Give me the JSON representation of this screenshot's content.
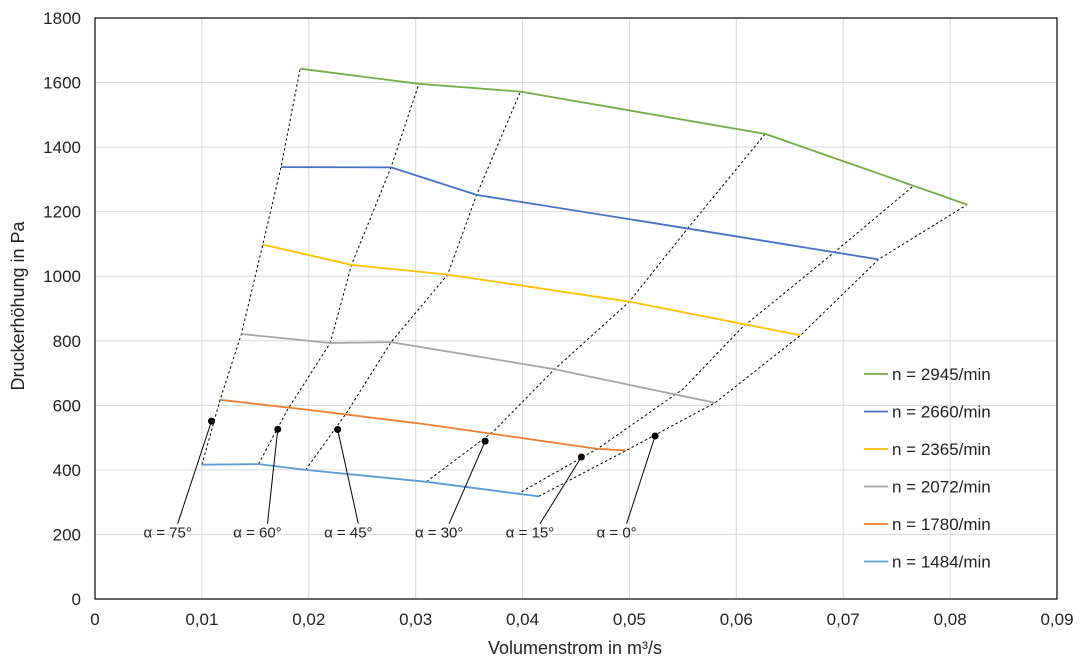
{
  "chart_data": {
    "type": "line",
    "xlabel": "Volumenstrom in m³/s",
    "ylabel": "Druckerhöhung in Pa",
    "xlim": [
      0,
      0.09
    ],
    "ylim": [
      0,
      1800
    ],
    "x_ticks": [
      0,
      0.01,
      0.02,
      0.03,
      0.04,
      0.05,
      0.06,
      0.07,
      0.08,
      0.09
    ],
    "x_tick_labels": [
      "0",
      "0,01",
      "0,02",
      "0,03",
      "0,04",
      "0,05",
      "0,06",
      "0,07",
      "0,08",
      "0,09"
    ],
    "y_ticks": [
      0,
      200,
      400,
      600,
      800,
      1000,
      1200,
      1400,
      1600,
      1800
    ],
    "y_tick_labels": [
      "0",
      "200",
      "400",
      "600",
      "800",
      "1000",
      "1200",
      "1400",
      "1600",
      "1800"
    ],
    "grid": "vertical and horizontal",
    "legend_position": "right",
    "series": [
      {
        "name": "n = 2945/min",
        "color": "#70ad47",
        "points": [
          [
            0.0192,
            1643
          ],
          [
            0.0303,
            1596
          ],
          [
            0.0398,
            1572
          ],
          [
            0.0627,
            1441
          ],
          [
            0.0816,
            1222
          ]
        ]
      },
      {
        "name": "n = 2660/min",
        "color": "#4472c4",
        "points": [
          [
            0.0174,
            1338
          ],
          [
            0.0277,
            1337
          ],
          [
            0.0357,
            1252
          ],
          [
            0.053,
            1161
          ],
          [
            0.0733,
            1052
          ]
        ]
      },
      {
        "name": "n = 2365/min",
        "color": "#ffc000",
        "points": [
          [
            0.0157,
            1098
          ],
          [
            0.024,
            1035
          ],
          [
            0.033,
            1005
          ],
          [
            0.05,
            921
          ],
          [
            0.066,
            817
          ]
        ]
      },
      {
        "name": "n = 2072/min",
        "color": "#a5a5a5",
        "points": [
          [
            0.0137,
            821
          ],
          [
            0.022,
            793
          ],
          [
            0.0277,
            796
          ],
          [
            0.043,
            712
          ],
          [
            0.058,
            608
          ]
        ]
      },
      {
        "name": "n = 1780/min",
        "color": "#ed7d31",
        "points": [
          [
            0.0117,
            617
          ],
          [
            0.02,
            586
          ],
          [
            0.031,
            541
          ],
          [
            0.047,
            465
          ],
          [
            0.0497,
            460
          ]
        ]
      },
      {
        "name": "n = 1484/min",
        "color": "#5b9bd5",
        "points": [
          [
            0.01,
            416
          ],
          [
            0.0153,
            418
          ],
          [
            0.0197,
            400
          ],
          [
            0.031,
            363
          ],
          [
            0.0415,
            318
          ]
        ]
      }
    ],
    "angle_lines": [
      {
        "label": "α = 75°",
        "points": [
          [
            0.01,
            416
          ],
          [
            0.0117,
            617
          ],
          [
            0.0137,
            821
          ],
          [
            0.0157,
            1098
          ],
          [
            0.0174,
            1338
          ],
          [
            0.0192,
            1643
          ]
        ],
        "marker": [
          0.0109,
          551
        ],
        "label_pos": [
          0.0068,
          190
        ]
      },
      {
        "label": "α = 60°",
        "points": [
          [
            0.0153,
            418
          ],
          [
            0.018,
            586
          ],
          [
            0.022,
            793
          ],
          [
            0.024,
            1035
          ],
          [
            0.0277,
            1338
          ],
          [
            0.0303,
            1596
          ]
        ],
        "marker": [
          0.0171,
          526
        ],
        "label_pos": [
          0.0152,
          190
        ]
      },
      {
        "label": "α = 45°",
        "points": [
          [
            0.0197,
            400
          ],
          [
            0.0235,
            575
          ],
          [
            0.0277,
            796
          ],
          [
            0.033,
            1005
          ],
          [
            0.0357,
            1252
          ],
          [
            0.0398,
            1572
          ]
        ],
        "marker": [
          0.0227,
          525
        ],
        "label_pos": [
          0.0237,
          190
        ]
      },
      {
        "label": "α = 30°",
        "points": [
          [
            0.031,
            363
          ],
          [
            0.0373,
            520
          ],
          [
            0.043,
            712
          ],
          [
            0.05,
            921
          ],
          [
            0.0555,
            1150
          ],
          [
            0.0627,
            1441
          ]
        ],
        "marker": [
          0.0365,
          489
        ],
        "label_pos": [
          0.0322,
          190
        ]
      },
      {
        "label": "α = 15°",
        "points": [
          [
            0.0395,
            325
          ],
          [
            0.047,
            465
          ],
          [
            0.055,
            650
          ],
          [
            0.0605,
            840
          ],
          [
            0.0692,
            1075
          ],
          [
            0.0765,
            1278
          ]
        ],
        "marker": [
          0.0455,
          440
        ],
        "label_pos": [
          0.0407,
          190
        ]
      },
      {
        "label": "α = 0°",
        "points": [
          [
            0.0415,
            318
          ],
          [
            0.0497,
            460
          ],
          [
            0.058,
            608
          ],
          [
            0.066,
            817
          ],
          [
            0.0733,
            1052
          ],
          [
            0.0816,
            1222
          ]
        ],
        "marker": [
          0.0524,
          505
        ],
        "label_pos": [
          0.0488,
          190
        ]
      }
    ]
  }
}
